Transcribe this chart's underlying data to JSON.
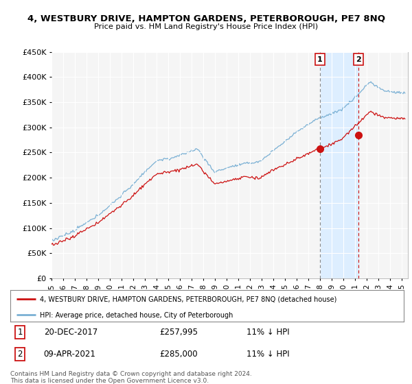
{
  "title": "4, WESTBURY DRIVE, HAMPTON GARDENS, PETERBOROUGH, PE7 8NQ",
  "subtitle": "Price paid vs. HM Land Registry's House Price Index (HPI)",
  "ylim": [
    0,
    450000
  ],
  "xlim_start": 1995.0,
  "xlim_end": 2025.5,
  "hpi_color": "#7ab0d4",
  "price_color": "#cc1111",
  "marker1_date": 2017.97,
  "marker1_price": 257995,
  "marker2_date": 2021.27,
  "marker2_price": 285000,
  "shade_color": "#ddeeff",
  "legend_line1": "4, WESTBURY DRIVE, HAMPTON GARDENS, PETERBOROUGH, PE7 8NQ (detached house)",
  "legend_line2": "HPI: Average price, detached house, City of Peterborough",
  "footnote": "Contains HM Land Registry data © Crown copyright and database right 2024.\nThis data is licensed under the Open Government Licence v3.0.",
  "background_color": "#ffffff",
  "plot_bg_color": "#f5f5f5",
  "grid_color": "#ffffff"
}
